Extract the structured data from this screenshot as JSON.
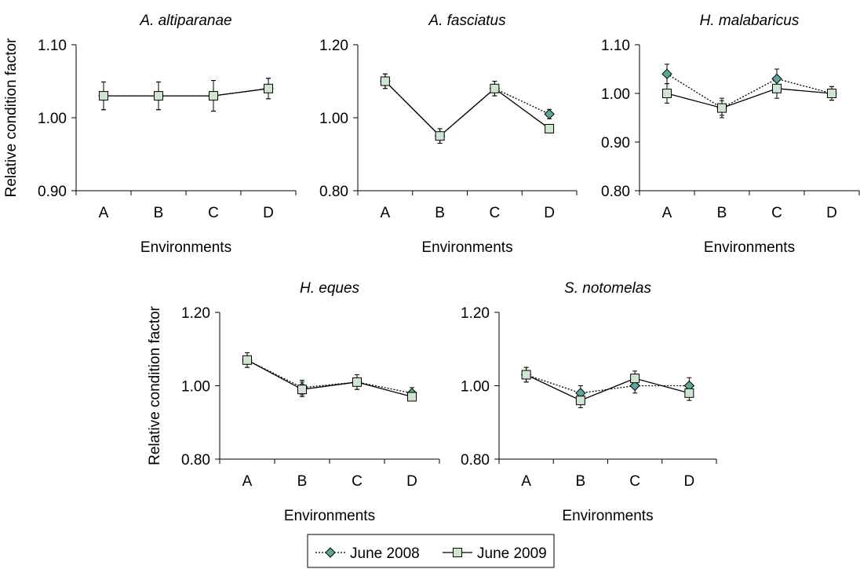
{
  "legend": {
    "items": [
      {
        "label": "June 2008",
        "marker": "diamond",
        "line": "dotted"
      },
      {
        "label": "June 2009",
        "marker": "square",
        "line": "solid"
      }
    ]
  },
  "colors": {
    "marker_2008": "#5ba89a",
    "marker_2009": "#cfe5cf",
    "stroke": "#000000"
  },
  "chart_data": [
    {
      "type": "line",
      "title": "A. altiparanae",
      "xlabel": "Environments",
      "ylabel": "Relative condition factor",
      "categories": [
        "A",
        "B",
        "C",
        "D"
      ],
      "ylim": [
        0.9,
        1.1
      ],
      "yticks": [
        "0.90",
        "1.00",
        "1.10"
      ],
      "series": [
        {
          "name": "June 2008",
          "values": [
            1.03,
            1.03,
            1.03,
            1.04
          ],
          "errors": [
            0.019,
            0.019,
            0.021,
            0.014
          ]
        },
        {
          "name": "June 2009",
          "values": [
            1.03,
            1.03,
            1.03,
            1.04
          ],
          "errors": [
            0.019,
            0.019,
            0.021,
            0.014
          ]
        }
      ]
    },
    {
      "type": "line",
      "title": "A. fasciatus",
      "xlabel": "Environments",
      "ylabel": "",
      "categories": [
        "A",
        "B",
        "C",
        "D"
      ],
      "ylim": [
        0.8,
        1.2
      ],
      "yticks": [
        "0.80",
        "1.00",
        "1.20"
      ],
      "series": [
        {
          "name": "June 2008",
          "values": [
            1.1,
            0.95,
            1.08,
            1.01
          ],
          "errors": [
            0.02,
            0.02,
            0.02,
            0.013
          ]
        },
        {
          "name": "June 2009",
          "values": [
            1.1,
            0.95,
            1.08,
            0.97
          ],
          "errors": [
            0.02,
            0.02,
            0.02,
            0.0
          ]
        }
      ]
    },
    {
      "type": "line",
      "title": "H. malabaricus",
      "xlabel": "Environments",
      "ylabel": "",
      "categories": [
        "A",
        "B",
        "C",
        "D"
      ],
      "ylim": [
        0.8,
        1.1
      ],
      "yticks": [
        "0.80",
        "0.90",
        "1.00",
        "1.10"
      ],
      "series": [
        {
          "name": "June 2008",
          "values": [
            1.04,
            0.97,
            1.03,
            1.0
          ],
          "errors": [
            0.02,
            0.015,
            0.02,
            0.014
          ]
        },
        {
          "name": "June 2009",
          "values": [
            1.0,
            0.97,
            1.01,
            1.0
          ],
          "errors": [
            0.02,
            0.02,
            0.02,
            0.014
          ]
        }
      ]
    },
    {
      "type": "line",
      "title": "H. eques",
      "xlabel": "Environments",
      "ylabel": "Relative condition factor",
      "categories": [
        "A",
        "B",
        "C",
        "D"
      ],
      "ylim": [
        0.8,
        1.2
      ],
      "yticks": [
        "0.80",
        "1.00",
        "1.20"
      ],
      "series": [
        {
          "name": "June 2008",
          "values": [
            1.07,
            0.995,
            1.01,
            0.98
          ],
          "errors": [
            0.02,
            0.02,
            0.02,
            0.015
          ]
        },
        {
          "name": "June 2009",
          "values": [
            1.07,
            0.99,
            1.01,
            0.97
          ],
          "errors": [
            0.02,
            0.02,
            0.02,
            0.0
          ]
        }
      ]
    },
    {
      "type": "line",
      "title": "S. notomelas",
      "xlabel": "Environments",
      "ylabel": "",
      "categories": [
        "A",
        "B",
        "C",
        "D"
      ],
      "ylim": [
        0.8,
        1.2
      ],
      "yticks": [
        "0.80",
        "1.00",
        "1.20"
      ],
      "series": [
        {
          "name": "June 2008",
          "values": [
            1.03,
            0.98,
            1.0,
            1.0
          ],
          "errors": [
            0.02,
            0.02,
            0.02,
            0.022
          ]
        },
        {
          "name": "June 2009",
          "values": [
            1.03,
            0.96,
            1.02,
            0.98
          ],
          "errors": [
            0.02,
            0.02,
            0.02,
            0.02
          ]
        }
      ]
    }
  ]
}
